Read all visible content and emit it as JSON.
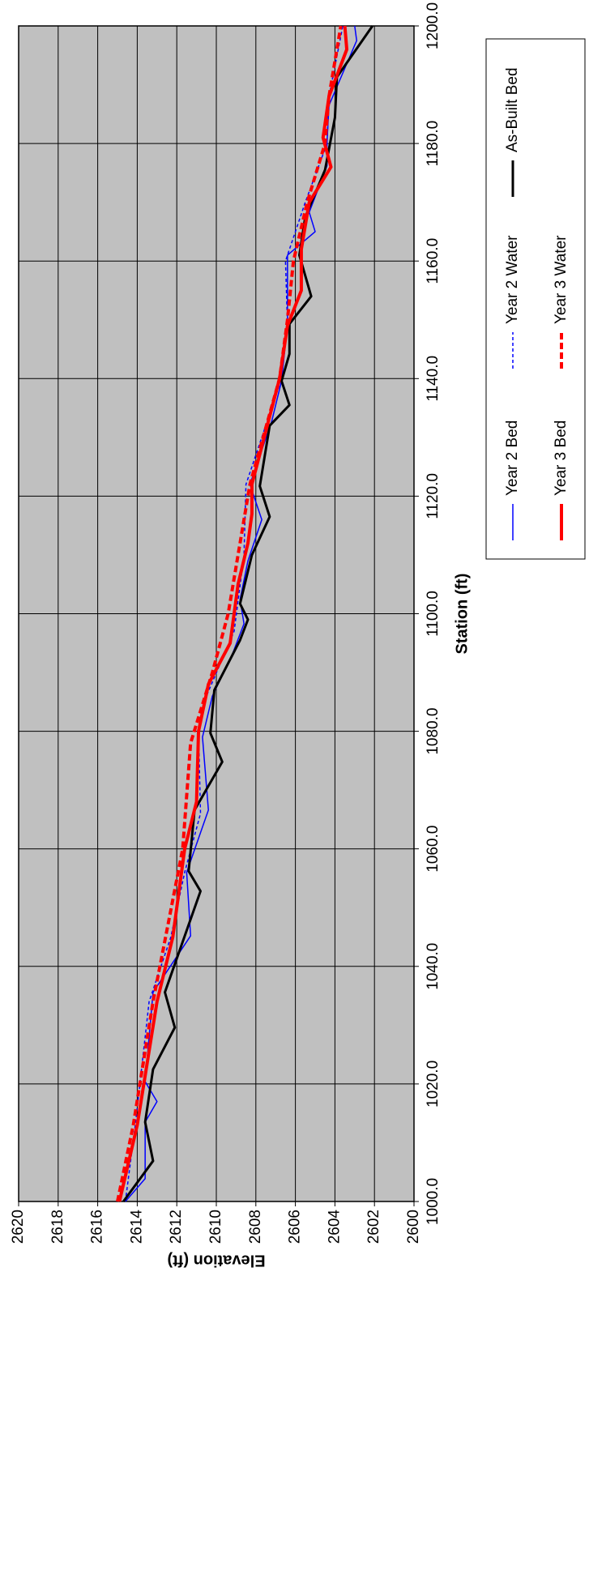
{
  "chart_data": {
    "type": "line",
    "xlabel": "Station (ft)",
    "ylabel": "Elevation (ft)",
    "xlim": [
      1000,
      1200
    ],
    "xticks": [
      {
        "value": 1000,
        "label": "1000.0"
      },
      {
        "value": 1020,
        "label": "1020.0"
      },
      {
        "value": 1040,
        "label": "1040.0"
      },
      {
        "value": 1060,
        "label": "1060.0"
      },
      {
        "value": 1080,
        "label": "1080.0"
      },
      {
        "value": 1100,
        "label": "1100.0"
      },
      {
        "value": 1120,
        "label": "1120.0"
      },
      {
        "value": 1140,
        "label": "1140.0"
      },
      {
        "value": 1160,
        "label": "1160.0"
      },
      {
        "value": 1180,
        "label": "1180.0"
      },
      {
        "value": 1200,
        "label": "1200.0"
      }
    ],
    "ylim": [
      2600,
      2620
    ],
    "yticks": [
      2600,
      2602,
      2604,
      2606,
      2608,
      2610,
      2612,
      2614,
      2616,
      2618,
      2620
    ],
    "grid": true,
    "rotation": -90,
    "series": [
      {
        "name": "Year 2 Bed",
        "color": "#0000ff",
        "width": 1.5,
        "dashed": false,
        "x": [
          1000,
          1003.9,
          1013.5,
          1017,
          1020.4,
          1035.6,
          1045.2,
          1056,
          1066.6,
          1079,
          1086,
          1093,
          1098.3,
          1102.4,
          1109,
          1116,
          1122,
          1132.7,
          1139.6,
          1149.3,
          1161,
          1165,
          1168.3,
          1176.2,
          1180.3,
          1186.5,
          1197.5,
          1200
        ],
        "values": [
          2614.6,
          2613.6,
          2613.6,
          2613,
          2613.6,
          2613.2,
          2611.3,
          2611.5,
          2610.4,
          2610.7,
          2610.2,
          2609.2,
          2608.6,
          2608.8,
          2608.4,
          2607.7,
          2608.3,
          2607.2,
          2606.7,
          2606.4,
          2606.4,
          2605,
          2605.3,
          2604.4,
          2604.4,
          2604.3,
          2602.9,
          2603
        ]
      },
      {
        "name": "Year 2 Water",
        "color": "#0000ff",
        "width": 1.5,
        "dashed": true,
        "x": [
          1000,
          1013,
          1034,
          1045,
          1056,
          1066,
          1080,
          1086,
          1097,
          1110,
          1122,
          1139,
          1149,
          1160,
          1170,
          1180,
          1188,
          1200
        ],
        "values": [
          2614.6,
          2614.1,
          2613.4,
          2612.3,
          2611.6,
          2610.8,
          2610.9,
          2610.5,
          2609.1,
          2608.6,
          2608.5,
          2606.8,
          2606.4,
          2606.5,
          2605.5,
          2604.4,
          2604.3,
          2603.6
        ]
      },
      {
        "name": "As-Built Bed",
        "color": "#000000",
        "width": 3,
        "dashed": false,
        "x": [
          1000,
          1006.9,
          1013.5,
          1022.5,
          1029.6,
          1035.6,
          1052.8,
          1056.2,
          1066.6,
          1074.8,
          1079.7,
          1087,
          1095.5,
          1099,
          1101.7,
          1110,
          1116.5,
          1121.7,
          1132,
          1135.5,
          1139.6,
          1144.2,
          1149.3,
          1154,
          1161,
          1167.5,
          1175.5,
          1184.4,
          1191.3,
          1200
        ],
        "values": [
          2614.7,
          2613.2,
          2613.6,
          2613.2,
          2612.1,
          2612.6,
          2610.8,
          2611.4,
          2611.1,
          2609.7,
          2610.3,
          2610.1,
          2608.8,
          2608.4,
          2608.8,
          2608.2,
          2607.3,
          2607.8,
          2607.3,
          2606.3,
          2606.7,
          2606.3,
          2606.3,
          2605.2,
          2605.8,
          2605.5,
          2604.5,
          2604,
          2603.9,
          2602.1
        ]
      },
      {
        "name": "Year 3 Bed",
        "color": "#ff0000",
        "width": 4,
        "dashed": false,
        "x": [
          1000,
          1013,
          1034,
          1045,
          1060,
          1068,
          1080,
          1088,
          1095,
          1105,
          1112,
          1117,
          1122,
          1140,
          1149,
          1155,
          1162,
          1170,
          1176,
          1181,
          1188,
          1196,
          1200
        ],
        "values": [
          2614.9,
          2614,
          2613,
          2612.2,
          2611.6,
          2611,
          2610.9,
          2610.4,
          2609.3,
          2608.9,
          2608.4,
          2608.2,
          2608.2,
          2606.8,
          2606.4,
          2605.7,
          2605.7,
          2605.3,
          2604.2,
          2604.6,
          2604.3,
          2603.4,
          2603.5
        ]
      },
      {
        "name": "Year 3 Water",
        "color": "#ff0000",
        "width": 4,
        "dashed": true,
        "x": [
          1000,
          1013,
          1034,
          1060,
          1078,
          1090,
          1100,
          1122,
          1140,
          1150,
          1160,
          1170,
          1180,
          1188,
          1198,
          1200
        ],
        "values": [
          2615,
          2614.2,
          2613.2,
          2611.7,
          2611.3,
          2610.2,
          2609.4,
          2608.3,
          2606.8,
          2606.4,
          2606.1,
          2605.4,
          2604.5,
          2604.3,
          2603.8,
          2603.7
        ]
      }
    ]
  }
}
